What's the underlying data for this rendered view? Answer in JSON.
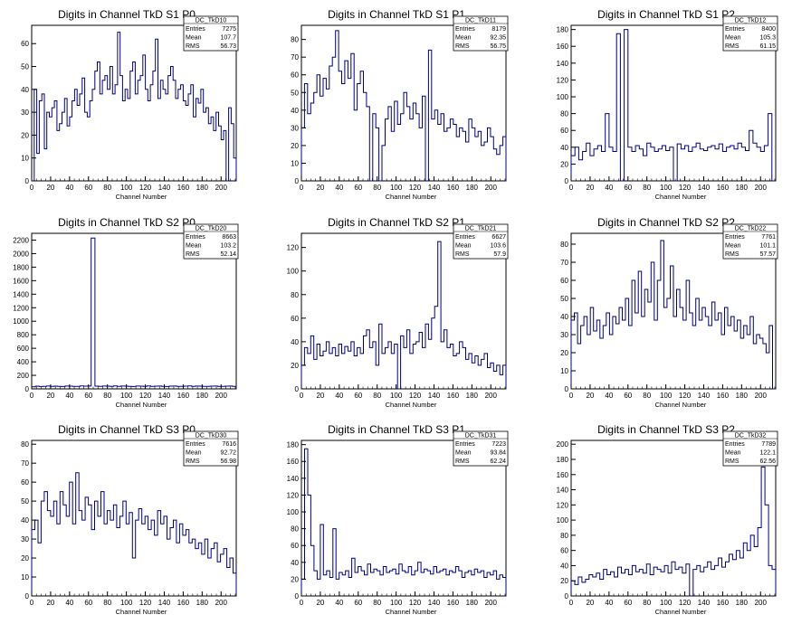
{
  "colors": {
    "line": "#000080",
    "axis": "#000000",
    "background": "#ffffff"
  },
  "chart_data": [
    {
      "type": "line",
      "title": "Digits in Channel TkD S1 P0",
      "xlabel": "Channel Number",
      "ylabel": "",
      "xlim": [
        0,
        216
      ],
      "xticks": [
        0,
        20,
        40,
        60,
        80,
        100,
        120,
        140,
        160,
        180,
        200
      ],
      "ylim": [
        0,
        68
      ],
      "yticks": [
        0,
        10,
        20,
        30,
        40,
        50,
        60
      ],
      "stats": {
        "name": "DC_TkD10",
        "entries": "7275",
        "mean": "107.7",
        "rms": "56.73"
      },
      "series": [
        {
          "values": [
            0,
            40,
            12,
            35,
            38,
            14,
            30,
            28,
            32,
            35,
            22,
            25,
            30,
            36,
            24,
            28,
            35,
            40,
            33,
            38,
            45,
            30,
            28,
            35,
            40,
            48,
            52,
            38,
            44,
            46,
            40,
            50,
            38,
            42,
            65,
            46,
            35,
            40,
            36,
            48,
            52,
            38,
            44,
            46,
            55,
            40,
            35,
            42,
            48,
            62,
            36,
            44,
            40,
            38,
            46,
            50,
            44,
            36,
            40,
            42,
            35,
            33,
            38,
            42,
            28,
            36,
            34,
            40,
            30,
            32,
            25,
            28,
            22,
            30,
            24,
            18,
            22,
            0,
            32,
            25,
            10
          ]
        }
      ]
    },
    {
      "type": "line",
      "title": "Digits in Channel TkD S1 P1",
      "xlabel": "Channel Number",
      "ylabel": "",
      "xlim": [
        0,
        216
      ],
      "xticks": [
        0,
        20,
        40,
        60,
        80,
        100,
        120,
        140,
        160,
        180,
        200
      ],
      "ylim": [
        0,
        88
      ],
      "yticks": [
        0,
        10,
        20,
        30,
        40,
        50,
        60,
        70,
        80
      ],
      "stats": {
        "name": "DC_TkD11",
        "entries": "8179",
        "mean": "92.35",
        "rms": "56.75"
      },
      "series": [
        {
          "values": [
            30,
            55,
            38,
            44,
            50,
            60,
            48,
            58,
            52,
            65,
            70,
            85,
            62,
            55,
            68,
            58,
            72,
            40,
            55,
            62,
            50,
            42,
            0,
            38,
            30,
            0,
            20,
            35,
            42,
            28,
            45,
            32,
            38,
            50,
            42,
            35,
            44,
            38,
            30,
            48,
            0,
            74,
            35,
            40,
            32,
            38,
            28,
            30,
            35,
            32,
            25,
            30,
            28,
            22,
            35,
            30,
            25,
            28,
            20,
            22,
            30,
            25,
            18,
            15,
            20,
            25
          ]
        }
      ]
    },
    {
      "type": "line",
      "title": "Digits in Channel TkD S1 P2",
      "xlabel": "Channel Number",
      "ylabel": "",
      "xlim": [
        0,
        216
      ],
      "xticks": [
        0,
        20,
        40,
        60,
        80,
        100,
        120,
        140,
        160,
        180,
        200
      ],
      "ylim": [
        0,
        185
      ],
      "yticks": [
        0,
        20,
        40,
        60,
        80,
        100,
        120,
        140,
        160,
        180
      ],
      "stats": {
        "name": "DC_TkD12",
        "entries": "8400",
        "mean": "105.3",
        "rms": "61.15"
      },
      "series": [
        {
          "values": [
            30,
            40,
            25,
            35,
            45,
            30,
            38,
            42,
            35,
            80,
            40,
            35,
            175,
            0,
            180,
            40,
            35,
            42,
            38,
            30,
            45,
            40,
            35,
            38,
            42,
            36,
            40,
            0,
            44,
            38,
            42,
            35,
            40,
            45,
            38,
            36,
            40,
            42,
            38,
            44,
            35,
            40,
            42,
            38,
            45,
            40,
            36,
            60,
            45,
            40,
            35,
            42,
            80,
            0
          ]
        }
      ]
    },
    {
      "type": "line",
      "title": "Digits in Channel TkD S2 P0",
      "xlabel": "Channel Number",
      "ylabel": "",
      "xlim": [
        0,
        216
      ],
      "xticks": [
        0,
        20,
        40,
        60,
        80,
        100,
        120,
        140,
        160,
        180,
        200
      ],
      "ylim": [
        0,
        2300
      ],
      "yticks": [
        0,
        200,
        400,
        600,
        800,
        1000,
        1200,
        1400,
        1600,
        1800,
        2000,
        2200
      ],
      "stats": {
        "name": "DC_TkD20",
        "entries": "8663",
        "mean": "103.2",
        "rms": "52.14"
      },
      "series": [
        {
          "values": [
            30,
            40,
            35,
            38,
            42,
            36,
            40,
            38,
            35,
            42,
            40,
            38,
            36,
            44,
            40,
            42,
            2230,
            40,
            38,
            42,
            40,
            36,
            44,
            38,
            42,
            40,
            38,
            35,
            42,
            40,
            38,
            44,
            36,
            40,
            42,
            38,
            35,
            40,
            42,
            38,
            36,
            40,
            44,
            38,
            42,
            40,
            36,
            38,
            40,
            42,
            38,
            36,
            40,
            42,
            38
          ]
        }
      ]
    },
    {
      "type": "line",
      "title": "Digits in Channel TkD S2 P1",
      "xlabel": "Channel Number",
      "ylabel": "",
      "xlim": [
        0,
        216
      ],
      "xticks": [
        0,
        20,
        40,
        60,
        80,
        100,
        120,
        140,
        160,
        180,
        200
      ],
      "ylim": [
        0,
        132
      ],
      "yticks": [
        0,
        20,
        40,
        60,
        80,
        100,
        120
      ],
      "stats": {
        "name": "DC_TkD21",
        "entries": "6627",
        "mean": "103.6",
        "rms": "57.9"
      },
      "series": [
        {
          "values": [
            20,
            35,
            30,
            45,
            25,
            38,
            28,
            32,
            40,
            30,
            35,
            28,
            38,
            30,
            36,
            32,
            40,
            28,
            35,
            30,
            45,
            50,
            35,
            40,
            20,
            55,
            30,
            35,
            40,
            30,
            38,
            0,
            45,
            35,
            50,
            30,
            38,
            40,
            48,
            35,
            55,
            42,
            60,
            70,
            125,
            40,
            50,
            35,
            38,
            28,
            30,
            40,
            35,
            25,
            30,
            22,
            28,
            20,
            25,
            30,
            18,
            22,
            15,
            20,
            12,
            20
          ]
        }
      ]
    },
    {
      "type": "line",
      "title": "Digits in Channel TkD S2 P2",
      "xlabel": "Channel Number",
      "ylabel": "",
      "xlim": [
        0,
        216
      ],
      "xticks": [
        0,
        20,
        40,
        60,
        80,
        100,
        120,
        140,
        160,
        180,
        200
      ],
      "ylim": [
        0,
        86
      ],
      "yticks": [
        0,
        10,
        20,
        30,
        40,
        50,
        60,
        70,
        80
      ],
      "stats": {
        "name": "DC_TkD22",
        "entries": "7761",
        "mean": "101.1",
        "rms": "57.57"
      },
      "series": [
        {
          "values": [
            38,
            42,
            25,
            35,
            40,
            30,
            45,
            32,
            38,
            28,
            35,
            42,
            30,
            40,
            36,
            45,
            38,
            50,
            35,
            60,
            42,
            65,
            40,
            55,
            48,
            70,
            38,
            60,
            82,
            45,
            50,
            68,
            40,
            55,
            45,
            38,
            60,
            42,
            35,
            50,
            38,
            45,
            40,
            35,
            48,
            38,
            42,
            30,
            45,
            35,
            40,
            32,
            38,
            28,
            35,
            30,
            40,
            25,
            30,
            28,
            25,
            20,
            35,
            0
          ]
        }
      ]
    },
    {
      "type": "line",
      "title": "Digits in Channel TkD S3 P0",
      "xlabel": "Channel Number",
      "ylabel": "",
      "xlim": [
        0,
        216
      ],
      "xticks": [
        0,
        20,
        40,
        60,
        80,
        100,
        120,
        140,
        160,
        180,
        200
      ],
      "ylim": [
        0,
        82
      ],
      "yticks": [
        0,
        10,
        20,
        30,
        40,
        50,
        60,
        70,
        80
      ],
      "stats": {
        "name": "DC_TkD30",
        "entries": "7616",
        "mean": "92.72",
        "rms": "56.98"
      },
      "series": [
        {
          "values": [
            35,
            40,
            28,
            50,
            55,
            45,
            42,
            50,
            38,
            55,
            48,
            42,
            60,
            38,
            65,
            45,
            40,
            52,
            48,
            35,
            50,
            42,
            55,
            38,
            45,
            40,
            48,
            36,
            42,
            50,
            38,
            44,
            20,
            40,
            46,
            38,
            42,
            35,
            40,
            32,
            45,
            38,
            42,
            30,
            36,
            40,
            28,
            38,
            32,
            35,
            28,
            30,
            25,
            28,
            22,
            30,
            20,
            25,
            28,
            18,
            22,
            25,
            15,
            20,
            12
          ]
        }
      ]
    },
    {
      "type": "line",
      "title": "Digits in Channel TkD S3 P1",
      "xlabel": "Channel Number",
      "ylabel": "",
      "xlim": [
        0,
        216
      ],
      "xticks": [
        0,
        20,
        40,
        60,
        80,
        100,
        120,
        140,
        160,
        180,
        200
      ],
      "ylim": [
        0,
        185
      ],
      "yticks": [
        0,
        20,
        40,
        60,
        80,
        100,
        120,
        140,
        160,
        180
      ],
      "stats": {
        "name": "DC_TkD31",
        "entries": "7223",
        "mean": "93.84",
        "rms": "62.24"
      },
      "series": [
        {
          "values": [
            20,
            175,
            120,
            60,
            30,
            20,
            85,
            25,
            30,
            22,
            80,
            20,
            28,
            25,
            30,
            22,
            45,
            28,
            35,
            30,
            25,
            38,
            28,
            32,
            30,
            25,
            35,
            28,
            30,
            32,
            26,
            38,
            30,
            28,
            35,
            25,
            30,
            40,
            28,
            32,
            30,
            26,
            35,
            28,
            30,
            32,
            25,
            30,
            28,
            35,
            30,
            22,
            28,
            30,
            25,
            32,
            28,
            30,
            22,
            28,
            25,
            30,
            20,
            25,
            22
          ]
        }
      ]
    },
    {
      "type": "line",
      "title": "Digits in Channel TkD S3 P2",
      "xlabel": "Channel Number",
      "ylabel": "",
      "xlim": [
        0,
        216
      ],
      "xticks": [
        0,
        20,
        40,
        60,
        80,
        100,
        120,
        140,
        160,
        180,
        200
      ],
      "ylim": [
        0,
        205
      ],
      "yticks": [
        0,
        20,
        40,
        60,
        80,
        100,
        120,
        140,
        160,
        180,
        200
      ],
      "stats": {
        "name": "DC_TkD32",
        "entries": "7789",
        "mean": "122.1",
        "rms": "62.56"
      },
      "series": [
        {
          "values": [
            20,
            15,
            25,
            18,
            22,
            28,
            25,
            30,
            22,
            35,
            28,
            32,
            25,
            38,
            30,
            35,
            28,
            40,
            32,
            35,
            30,
            42,
            28,
            38,
            35,
            32,
            40,
            30,
            45,
            35,
            38,
            30,
            42,
            0,
            35,
            40,
            32,
            38,
            45,
            35,
            40,
            50,
            38,
            45,
            55,
            48,
            60,
            50,
            70,
            60,
            80,
            65,
            90,
            170,
            120,
            40,
            35
          ]
        }
      ]
    }
  ]
}
